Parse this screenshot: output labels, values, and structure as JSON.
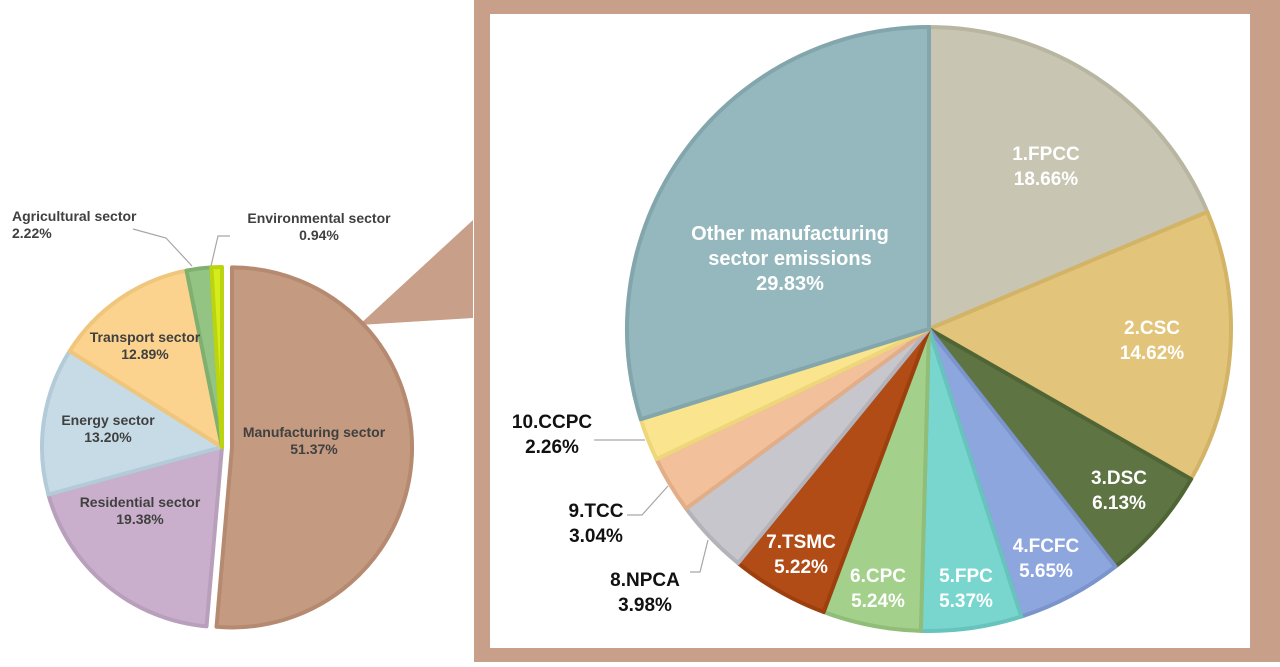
{
  "chart_data": [
    {
      "type": "pie",
      "slices": [
        {
          "label": "Manufacturing sector",
          "value": 51.37,
          "value_label": "51.37%",
          "color": "#c49a80",
          "stroke": "#b58a70"
        },
        {
          "label": "Residential sector",
          "value": 19.38,
          "value_label": "19.38%",
          "color": "#c9afcb",
          "stroke": "#b89fbb"
        },
        {
          "label": "Energy sector",
          "value": 13.2,
          "value_label": "13.20%",
          "color": "#c6dbe6",
          "stroke": "#b3cbd8"
        },
        {
          "label": "Transport sector",
          "value": 12.89,
          "value_label": "12.89%",
          "color": "#fcd38e",
          "stroke": "#efc67c"
        },
        {
          "label": "Agricultural sector",
          "value": 2.22,
          "value_label": "2.22%",
          "color": "#93c483",
          "stroke": "#7fb06f"
        },
        {
          "label": "Environmental sector",
          "value": 0.94,
          "value_label": "0.94%",
          "color": "#d4ec1b",
          "stroke": "#bcd40f"
        }
      ]
    },
    {
      "type": "pie",
      "slices": [
        {
          "label": "1.FPCC",
          "value": 18.66,
          "value_label": "18.66%",
          "color": "#c8c6b3",
          "stroke": "#b8b6a1"
        },
        {
          "label": "2.CSC",
          "value": 14.62,
          "value_label": "14.62%",
          "color": "#e2c47a",
          "stroke": "#d3b466"
        },
        {
          "label": "3.DSC",
          "value": 6.13,
          "value_label": "6.13%",
          "color": "#5e7442",
          "stroke": "#4f6535"
        },
        {
          "label": "4.FCFC",
          "value": 5.65,
          "value_label": "5.65%",
          "color": "#8ea6de",
          "stroke": "#7c94cc"
        },
        {
          "label": "5.FPC",
          "value": 5.37,
          "value_label": "5.37%",
          "color": "#78d6cf",
          "stroke": "#66c4bd"
        },
        {
          "label": "6.CPC",
          "value": 5.24,
          "value_label": "5.24%",
          "color": "#a3d08b",
          "stroke": "#90bd78"
        },
        {
          "label": "7.TSMC",
          "value": 5.22,
          "value_label": "5.22%",
          "color": "#b24c16",
          "stroke": "#9e3f0e"
        },
        {
          "label": "8.NPCA",
          "value": 3.98,
          "value_label": "3.98%",
          "color": "#c6c6cc",
          "stroke": "#b3b3b9"
        },
        {
          "label": "9.TCC",
          "value": 3.04,
          "value_label": "3.04%",
          "color": "#f2c09a",
          "stroke": "#e2ae88"
        },
        {
          "label": "10.CCPC",
          "value": 2.26,
          "value_label": "2.26%",
          "color": "#fae58e",
          "stroke": "#eed67a"
        },
        {
          "label": "Other manufacturing sector emissions",
          "value": 29.83,
          "value_label": "29.83%",
          "color": "#94b8bd",
          "stroke": "#82a6ab"
        }
      ]
    }
  ],
  "colors": {
    "frame": "#c89f88",
    "frame_inner": "#ffffff"
  }
}
